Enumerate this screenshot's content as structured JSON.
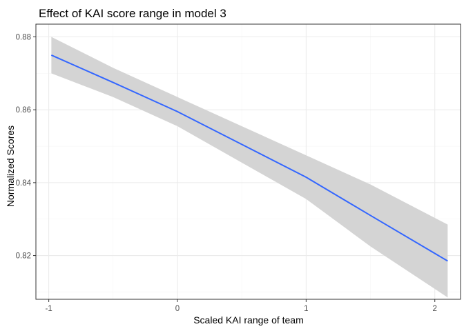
{
  "chart_data": {
    "type": "line",
    "title": "Effect of KAI score range in model 3",
    "xlabel": "Scaled KAI range of team",
    "ylabel": "Normalized Scores",
    "xlim": [
      -1.1,
      2.2
    ],
    "ylim": [
      0.808,
      0.8835
    ],
    "x_ticks": [
      -1,
      0,
      1,
      2
    ],
    "x_tick_labels": [
      "-1",
      "0",
      "1",
      "2"
    ],
    "x_minor_ticks": [
      -0.5,
      0.5,
      1.5
    ],
    "y_ticks": [
      0.82,
      0.84,
      0.86,
      0.88
    ],
    "y_tick_labels": [
      "0.82",
      "0.84",
      "0.86",
      "0.88"
    ],
    "y_minor_ticks": [
      0.81,
      0.83,
      0.85,
      0.87
    ],
    "grid": true,
    "legend": "none",
    "series": [
      {
        "x": [
          -0.98,
          -0.5,
          0,
          0.5,
          1.0,
          1.5,
          2.1
        ],
        "y": [
          0.875,
          0.8675,
          0.8595,
          0.8505,
          0.8415,
          0.831,
          0.8185
        ],
        "lower": [
          0.87,
          0.8635,
          0.8555,
          0.8455,
          0.8355,
          0.8225,
          0.8085
        ],
        "upper": [
          0.88,
          0.8715,
          0.8635,
          0.8555,
          0.8475,
          0.8395,
          0.8285
        ]
      }
    ],
    "colors": {
      "line": "#3366ff",
      "ribbon": "#d4d4d4",
      "grid_major": "#ebebeb",
      "grid_minor": "#f5f5f5",
      "panel_border": "#333333"
    }
  }
}
